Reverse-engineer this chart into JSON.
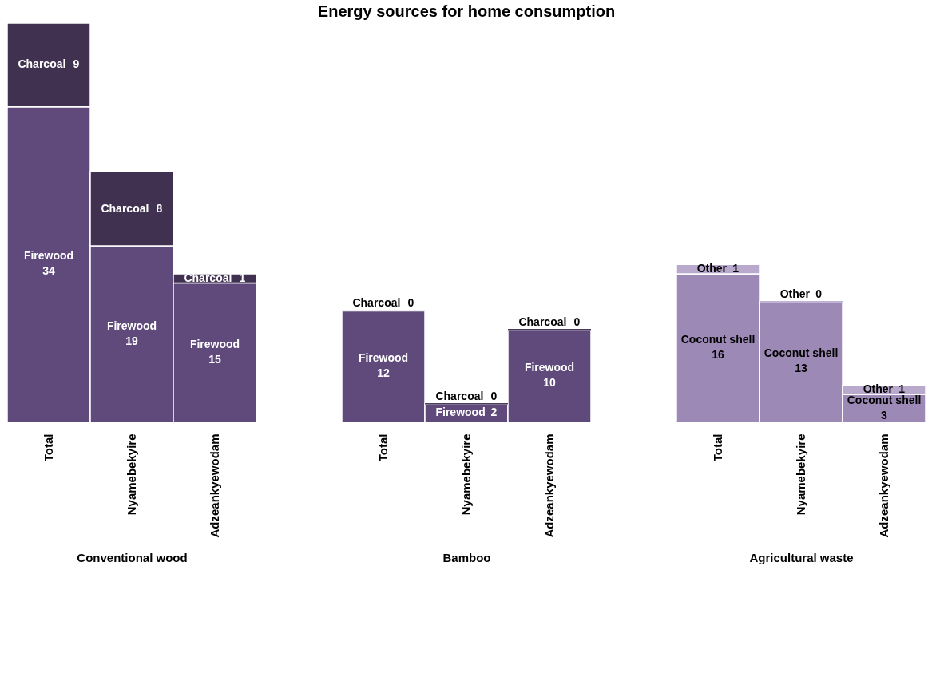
{
  "chart_data": [
    {
      "type": "bar",
      "stacked": true,
      "xlabel": "Conventional wood",
      "categories": [
        "Total",
        "Nyamebekyire",
        "Adzeankyewodam"
      ],
      "grid": false,
      "data_labels": true,
      "series": [
        {
          "name": "Firewood",
          "color": "#604a7b",
          "values": [
            34,
            19,
            15
          ]
        },
        {
          "name": "Charcoal",
          "color": "#403151",
          "values": [
            9,
            8,
            1
          ]
        }
      ]
    },
    {
      "type": "bar",
      "stacked": true,
      "title": "Energy sources for home consumption",
      "xlabel": "Bamboo",
      "categories": [
        "Total",
        "Nyamebekyire",
        "Adzeankyewodam"
      ],
      "grid": false,
      "data_labels": true,
      "series": [
        {
          "name": "Firewood",
          "color": "#604a7b",
          "values": [
            12,
            2,
            10
          ]
        },
        {
          "name": "Charcoal",
          "color": "#403151",
          "values": [
            0,
            0,
            0
          ]
        }
      ]
    },
    {
      "type": "bar",
      "stacked": true,
      "xlabel": "Agricultural waste",
      "categories": [
        "Total",
        "Nyamebekyire",
        "Adzeankyewodam"
      ],
      "grid": false,
      "data_labels": true,
      "series": [
        {
          "name": "Coconut shell",
          "color": "#9d89b6",
          "values": [
            16,
            13,
            3
          ]
        },
        {
          "name": "Other",
          "color": "#b8a9cd",
          "values": [
            1,
            0,
            1
          ]
        }
      ]
    }
  ]
}
